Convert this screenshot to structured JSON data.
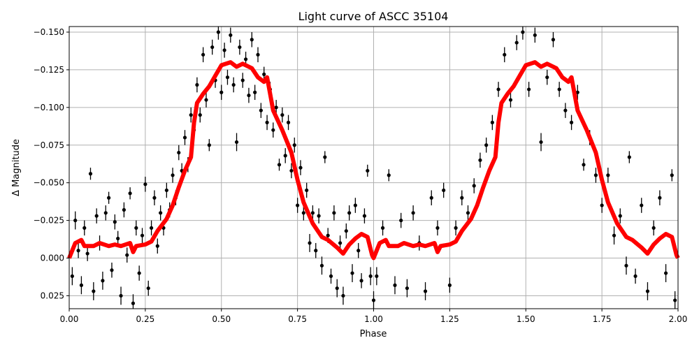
{
  "chart_data": {
    "type": "scatter",
    "title": "Light curve of ASCC 35104",
    "xlabel": "Phase",
    "ylabel": "Δ Magnitude",
    "xlim": [
      0.0,
      2.0
    ],
    "ylim": [
      0.0336,
      -0.1537
    ],
    "y_inverted": true,
    "grid": true,
    "xticks": [
      0.0,
      0.25,
      0.5,
      0.75,
      1.0,
      1.25,
      1.5,
      1.75,
      2.0
    ],
    "xtick_labels": [
      "0.00",
      "0.25",
      "0.50",
      "0.75",
      "1.00",
      "1.25",
      "1.50",
      "1.75",
      "2.00"
    ],
    "yticks": [
      -0.15,
      -0.125,
      -0.1,
      -0.075,
      -0.05,
      -0.025,
      0.0,
      0.025
    ],
    "ytick_labels": [
      "−0.150",
      "−0.125",
      "−0.100",
      "−0.075",
      "−0.050",
      "−0.025",
      "0.000",
      "0.025"
    ],
    "colors": {
      "observations": "#000000",
      "model": "#ff0000",
      "grid": "#b0b0b0"
    },
    "model_curve": {
      "phase": [
        0.0,
        0.02,
        0.04,
        0.05,
        0.08,
        0.1,
        0.13,
        0.15,
        0.17,
        0.2,
        0.21,
        0.22,
        0.25,
        0.27,
        0.29,
        0.32,
        0.34,
        0.36,
        0.38,
        0.4,
        0.41,
        0.42,
        0.44,
        0.46,
        0.48,
        0.5,
        0.53,
        0.55,
        0.57,
        0.6,
        0.62,
        0.64,
        0.65,
        0.67,
        0.7,
        0.73,
        0.75,
        0.77,
        0.8,
        0.83,
        0.85,
        0.88,
        0.9,
        0.92,
        0.94,
        0.96,
        0.98,
        0.995,
        1.0
      ],
      "mag": [
        0.0,
        -0.01,
        -0.012,
        -0.008,
        -0.008,
        -0.01,
        -0.008,
        -0.009,
        -0.008,
        -0.01,
        -0.004,
        -0.008,
        -0.009,
        -0.011,
        -0.018,
        -0.026,
        -0.035,
        -0.047,
        -0.058,
        -0.067,
        -0.09,
        -0.103,
        -0.109,
        -0.114,
        -0.121,
        -0.128,
        -0.13,
        -0.127,
        -0.129,
        -0.126,
        -0.12,
        -0.117,
        -0.12,
        -0.098,
        -0.085,
        -0.07,
        -0.052,
        -0.037,
        -0.023,
        -0.014,
        -0.012,
        -0.007,
        -0.003,
        -0.009,
        -0.013,
        -0.016,
        -0.014,
        -0.002,
        0.0
      ],
      "repeats_every_phase": 1.0
    },
    "observations": [
      [
        0.01,
        0.012,
        0.006
      ],
      [
        0.02,
        -0.025,
        0.006
      ],
      [
        0.03,
        -0.005,
        0.005
      ],
      [
        0.04,
        0.018,
        0.006
      ],
      [
        0.05,
        -0.02,
        0.005
      ],
      [
        0.06,
        -0.003,
        0.005
      ],
      [
        0.07,
        -0.056,
        0.004
      ],
      [
        0.08,
        0.022,
        0.006
      ],
      [
        0.09,
        -0.028,
        0.005
      ],
      [
        0.1,
        -0.01,
        0.005
      ],
      [
        0.11,
        0.015,
        0.006
      ],
      [
        0.12,
        -0.03,
        0.005
      ],
      [
        0.13,
        -0.04,
        0.004
      ],
      [
        0.14,
        0.008,
        0.005
      ],
      [
        0.15,
        -0.024,
        0.005
      ],
      [
        0.16,
        -0.013,
        0.005
      ],
      [
        0.17,
        0.025,
        0.006
      ],
      [
        0.18,
        -0.032,
        0.005
      ],
      [
        0.19,
        -0.002,
        0.005
      ],
      [
        0.2,
        -0.043,
        0.004
      ],
      [
        0.21,
        0.03,
        0.006
      ],
      [
        0.22,
        -0.02,
        0.005
      ],
      [
        0.23,
        0.01,
        0.005
      ],
      [
        0.24,
        -0.015,
        0.005
      ],
      [
        0.25,
        -0.049,
        0.005
      ],
      [
        0.26,
        0.02,
        0.005
      ],
      [
        0.27,
        -0.02,
        0.005
      ],
      [
        0.28,
        -0.04,
        0.005
      ],
      [
        0.29,
        -0.008,
        0.005
      ],
      [
        0.3,
        -0.03,
        0.005
      ],
      [
        0.31,
        -0.02,
        0.005
      ],
      [
        0.32,
        -0.045,
        0.005
      ],
      [
        0.33,
        -0.032,
        0.005
      ],
      [
        0.34,
        -0.055,
        0.005
      ],
      [
        0.35,
        -0.04,
        0.005
      ],
      [
        0.36,
        -0.07,
        0.005
      ],
      [
        0.37,
        -0.058,
        0.005
      ],
      [
        0.38,
        -0.08,
        0.005
      ],
      [
        0.39,
        -0.062,
        0.005
      ],
      [
        0.4,
        -0.095,
        0.005
      ],
      [
        0.41,
        -0.085,
        0.005
      ],
      [
        0.42,
        -0.115,
        0.005
      ],
      [
        0.43,
        -0.095,
        0.005
      ],
      [
        0.44,
        -0.135,
        0.005
      ],
      [
        0.45,
        -0.105,
        0.005
      ],
      [
        0.46,
        -0.075,
        0.004
      ],
      [
        0.47,
        -0.14,
        0.005
      ],
      [
        0.48,
        -0.118,
        0.005
      ],
      [
        0.49,
        -0.15,
        0.005
      ],
      [
        0.5,
        -0.11,
        0.005
      ],
      [
        0.51,
        -0.138,
        0.005
      ],
      [
        0.52,
        -0.12,
        0.005
      ],
      [
        0.53,
        -0.148,
        0.005
      ],
      [
        0.54,
        -0.115,
        0.005
      ],
      [
        0.55,
        -0.077,
        0.006
      ],
      [
        0.56,
        -0.14,
        0.005
      ],
      [
        0.57,
        -0.118,
        0.005
      ],
      [
        0.58,
        -0.132,
        0.005
      ],
      [
        0.59,
        -0.108,
        0.005
      ],
      [
        0.6,
        -0.145,
        0.005
      ],
      [
        0.61,
        -0.11,
        0.005
      ],
      [
        0.62,
        -0.135,
        0.005
      ],
      [
        0.63,
        -0.098,
        0.005
      ],
      [
        0.64,
        -0.122,
        0.005
      ],
      [
        0.65,
        -0.09,
        0.005
      ],
      [
        0.66,
        -0.112,
        0.005
      ],
      [
        0.67,
        -0.085,
        0.005
      ],
      [
        0.68,
        -0.1,
        0.005
      ],
      [
        0.69,
        -0.062,
        0.004
      ],
      [
        0.7,
        -0.095,
        0.005
      ],
      [
        0.71,
        -0.068,
        0.005
      ],
      [
        0.72,
        -0.09,
        0.005
      ],
      [
        0.73,
        -0.058,
        0.005
      ],
      [
        0.74,
        -0.075,
        0.005
      ],
      [
        0.75,
        -0.035,
        0.005
      ],
      [
        0.76,
        -0.06,
        0.005
      ],
      [
        0.77,
        -0.03,
        0.005
      ],
      [
        0.78,
        -0.045,
        0.005
      ],
      [
        0.79,
        -0.01,
        0.006
      ],
      [
        0.8,
        -0.03,
        0.005
      ],
      [
        0.81,
        -0.005,
        0.005
      ],
      [
        0.82,
        -0.028,
        0.005
      ],
      [
        0.83,
        0.005,
        0.006
      ],
      [
        0.84,
        -0.067,
        0.004
      ],
      [
        0.85,
        -0.015,
        0.005
      ],
      [
        0.86,
        0.012,
        0.005
      ],
      [
        0.87,
        -0.03,
        0.005
      ],
      [
        0.88,
        0.02,
        0.006
      ],
      [
        0.89,
        -0.01,
        0.005
      ],
      [
        0.9,
        0.025,
        0.006
      ],
      [
        0.91,
        -0.018,
        0.005
      ],
      [
        0.92,
        -0.03,
        0.005
      ],
      [
        0.93,
        0.01,
        0.006
      ],
      [
        0.94,
        -0.035,
        0.005
      ],
      [
        0.95,
        -0.005,
        0.005
      ],
      [
        0.96,
        0.015,
        0.005
      ],
      [
        0.97,
        -0.028,
        0.005
      ],
      [
        0.98,
        -0.058,
        0.004
      ],
      [
        0.99,
        0.012,
        0.006
      ],
      [
        1.0,
        0.028,
        0.006
      ],
      [
        1.01,
        0.012,
        0.006
      ],
      [
        1.03,
        -0.02,
        0.005
      ],
      [
        1.05,
        -0.055,
        0.004
      ],
      [
        1.07,
        0.018,
        0.006
      ],
      [
        1.09,
        -0.025,
        0.005
      ],
      [
        1.11,
        0.02,
        0.006
      ],
      [
        1.13,
        -0.03,
        0.005
      ],
      [
        1.15,
        -0.01,
        0.005
      ],
      [
        1.17,
        0.022,
        0.006
      ],
      [
        1.19,
        -0.04,
        0.005
      ],
      [
        1.21,
        -0.02,
        0.005
      ],
      [
        1.23,
        -0.045,
        0.005
      ],
      [
        1.25,
        0.018,
        0.005
      ],
      [
        1.27,
        -0.02,
        0.005
      ],
      [
        1.29,
        -0.04,
        0.005
      ],
      [
        1.31,
        -0.03,
        0.005
      ],
      [
        1.33,
        -0.048,
        0.005
      ],
      [
        1.35,
        -0.065,
        0.005
      ],
      [
        1.37,
        -0.075,
        0.005
      ],
      [
        1.39,
        -0.09,
        0.005
      ],
      [
        1.41,
        -0.112,
        0.005
      ],
      [
        1.43,
        -0.135,
        0.005
      ],
      [
        1.45,
        -0.105,
        0.005
      ],
      [
        1.47,
        -0.143,
        0.005
      ],
      [
        1.49,
        -0.15,
        0.005
      ],
      [
        1.51,
        -0.112,
        0.005
      ],
      [
        1.53,
        -0.148,
        0.005
      ],
      [
        1.55,
        -0.077,
        0.006
      ],
      [
        1.57,
        -0.12,
        0.005
      ],
      [
        1.59,
        -0.145,
        0.005
      ],
      [
        1.61,
        -0.112,
        0.005
      ],
      [
        1.63,
        -0.098,
        0.005
      ],
      [
        1.65,
        -0.09,
        0.005
      ],
      [
        1.67,
        -0.11,
        0.005
      ],
      [
        1.69,
        -0.062,
        0.004
      ],
      [
        1.71,
        -0.08,
        0.005
      ],
      [
        1.73,
        -0.055,
        0.005
      ],
      [
        1.75,
        -0.035,
        0.005
      ],
      [
        1.77,
        -0.055,
        0.005
      ],
      [
        1.79,
        -0.015,
        0.006
      ],
      [
        1.81,
        -0.028,
        0.005
      ],
      [
        1.83,
        0.005,
        0.006
      ],
      [
        1.84,
        -0.067,
        0.004
      ],
      [
        1.86,
        0.012,
        0.005
      ],
      [
        1.88,
        -0.035,
        0.005
      ],
      [
        1.9,
        0.022,
        0.006
      ],
      [
        1.92,
        -0.02,
        0.005
      ],
      [
        1.94,
        -0.04,
        0.005
      ],
      [
        1.96,
        0.01,
        0.006
      ],
      [
        1.98,
        -0.055,
        0.004
      ],
      [
        1.99,
        0.028,
        0.006
      ]
    ]
  }
}
